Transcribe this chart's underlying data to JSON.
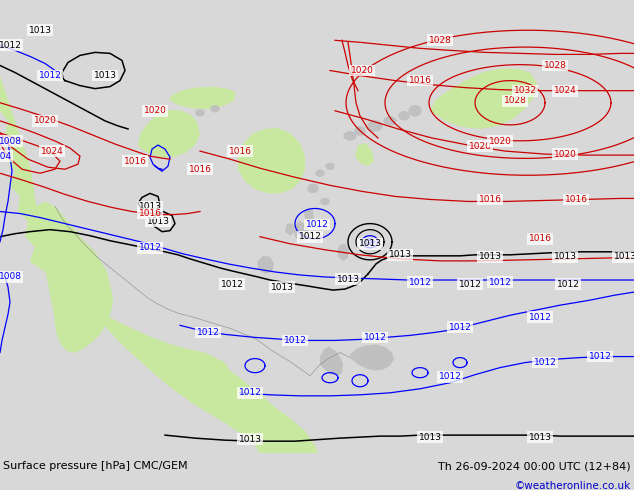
{
  "title_left": "Surface pressure [hPa] CMC/GEM",
  "title_right": "Th 26-09-2024 00:00 UTC (12+84)",
  "copyright": "©weatheronline.co.uk",
  "bg_color": "#e8e8e8",
  "land_green": "#c8e8a0",
  "land_gray": "#c0c0c0",
  "ocean_color": "#e0e8f0",
  "footer_bg": "#d8d8d8",
  "figsize": [
    6.34,
    4.9
  ],
  "dpi": 100
}
